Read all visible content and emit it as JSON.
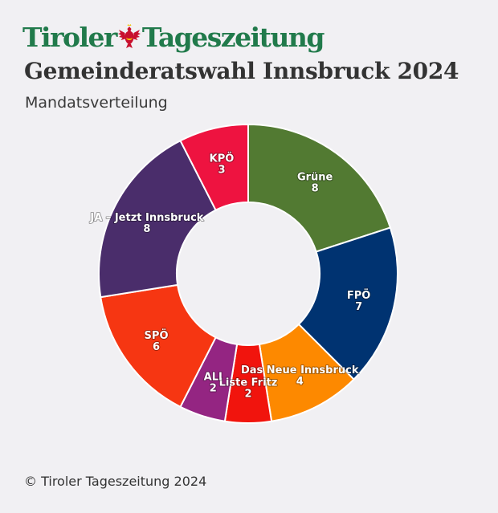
{
  "brand": {
    "left_text": "Tiroler",
    "right_text": "Tageszeitung",
    "emblem_icon": "tyrolean-eagle-icon",
    "color": "#217a4b",
    "emblem_color": "#c8102e"
  },
  "header": {
    "title": "Gemeinderatswahl Innsbruck 2024",
    "subtitle": "Mandatsverteilung"
  },
  "chart_data": {
    "type": "pie",
    "variant": "donut",
    "title": "Gemeinderatswahl Innsbruck 2024",
    "subtitle": "Mandatsverteilung",
    "start_angle_deg": 0,
    "direction": "clockwise",
    "slices": [
      {
        "label": "Grüne",
        "value": 8,
        "color": "#527a32"
      },
      {
        "label": "FPÖ",
        "value": 7,
        "color": "#003371"
      },
      {
        "label": "Das Neue Innsbruck",
        "value": 4,
        "color": "#fd8900"
      },
      {
        "label": "Liste Fritz",
        "value": 2,
        "color": "#f1140d"
      },
      {
        "label": "ALI",
        "value": 2,
        "color": "#942582"
      },
      {
        "label": "SPÖ",
        "value": 6,
        "color": "#f63612"
      },
      {
        "label": "JA – Jetzt Innsbruck",
        "value": 8,
        "color": "#4a2d6b"
      },
      {
        "label": "KPÖ",
        "value": 3,
        "color": "#ee1340"
      }
    ],
    "legend": "none",
    "data_labels": true
  },
  "footer": {
    "copyright": "© Tiroler Tageszeitung 2024"
  }
}
